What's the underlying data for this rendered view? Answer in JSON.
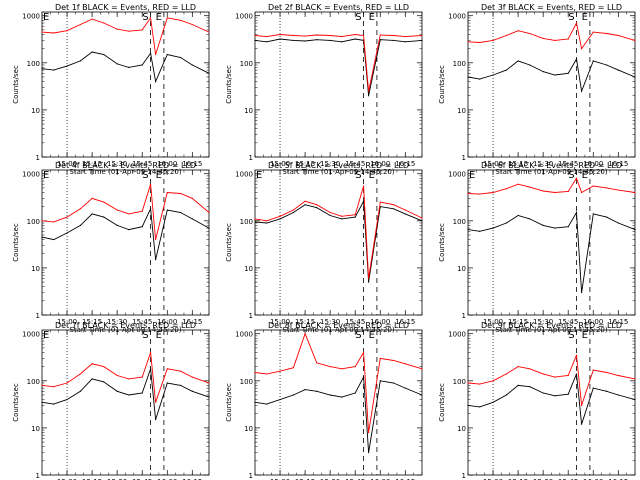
{
  "figure": {
    "background": "#ffffff",
    "axis_color": "#000000",
    "series_colors": {
      "events": "#000000",
      "lld": "#ff0000"
    },
    "x_axis_label": "Start Time (01-Apr-09 14:45:20)",
    "x_tick_labels": [
      "15:00",
      "15:15",
      "15:30",
      "15:45",
      "16:00",
      "16:15"
    ],
    "y_axis_label": "Counts/sec",
    "y_tick_labels": [
      "1",
      "10",
      "100",
      "1000"
    ],
    "marker_labels": {
      "E_left": "E",
      "S": "S",
      "E_right": "E"
    }
  },
  "chart_data": [
    {
      "type": "line",
      "title": "Det 1f BLACK = Events, RED = LLD",
      "x": [
        "14:45",
        "14:52",
        "15:00",
        "15:08",
        "15:15",
        "15:22",
        "15:30",
        "15:37",
        "15:45",
        "15:50",
        "15:53",
        "16:00",
        "16:08",
        "16:15",
        "16:25"
      ],
      "series": [
        {
          "name": "BLACK = Events",
          "values": [
            75,
            70,
            85,
            110,
            170,
            150,
            95,
            80,
            90,
            160,
            40,
            150,
            130,
            90,
            60
          ]
        },
        {
          "name": "RED = LLD",
          "values": [
            450,
            430,
            480,
            650,
            850,
            700,
            520,
            470,
            500,
            900,
            150,
            900,
            800,
            650,
            450
          ]
        }
      ],
      "xlim": [
        "14:45",
        "16:25"
      ],
      "ylim": [
        1,
        1200
      ],
      "yscale": "log",
      "markers": {
        "E_left": "14:45",
        "S": "15:50",
        "E_right": "15:58",
        "dotted": "15:00"
      }
    },
    {
      "type": "line",
      "title": "Det 2f BLACK = Events, RED = LLD",
      "x": [
        "14:45",
        "14:52",
        "15:00",
        "15:08",
        "15:15",
        "15:22",
        "15:30",
        "15:37",
        "15:45",
        "15:50",
        "15:53",
        "16:00",
        "16:08",
        "16:15",
        "16:25"
      ],
      "series": [
        {
          "name": "BLACK = Events",
          "values": [
            300,
            280,
            320,
            300,
            290,
            310,
            300,
            280,
            320,
            300,
            20,
            310,
            300,
            280,
            300
          ]
        },
        {
          "name": "RED = LLD",
          "values": [
            380,
            360,
            400,
            380,
            370,
            390,
            380,
            360,
            400,
            380,
            25,
            390,
            380,
            360,
            380
          ]
        }
      ],
      "xlim": [
        "14:45",
        "16:25"
      ],
      "ylim": [
        1,
        1200
      ],
      "yscale": "log",
      "markers": {
        "E_left": "",
        "S": "15:50",
        "E_right": "15:58",
        "dotted": "15:00"
      }
    },
    {
      "type": "line",
      "title": "Det 3f BLACK = Events, RED = LLD",
      "x": [
        "14:45",
        "14:52",
        "15:00",
        "15:08",
        "15:15",
        "15:22",
        "15:30",
        "15:37",
        "15:45",
        "15:50",
        "15:53",
        "16:00",
        "16:08",
        "16:15",
        "16:25"
      ],
      "series": [
        {
          "name": "BLACK = Events",
          "values": [
            50,
            45,
            55,
            70,
            110,
            90,
            65,
            55,
            60,
            120,
            25,
            110,
            90,
            70,
            50
          ]
        },
        {
          "name": "RED = LLD",
          "values": [
            280,
            270,
            300,
            380,
            480,
            420,
            330,
            300,
            320,
            700,
            200,
            450,
            420,
            380,
            300
          ]
        }
      ],
      "xlim": [
        "14:45",
        "16:25"
      ],
      "ylim": [
        1,
        1200
      ],
      "yscale": "log",
      "markers": {
        "E_left": "",
        "S": "15:50",
        "E_right": "15:58",
        "dotted": "15:00"
      }
    },
    {
      "type": "line",
      "title": "Det 4f BLACK = Events, RED = LLD",
      "x": [
        "14:45",
        "14:52",
        "15:00",
        "15:08",
        "15:15",
        "15:22",
        "15:30",
        "15:37",
        "15:45",
        "15:50",
        "15:53",
        "16:00",
        "16:08",
        "16:15",
        "16:25"
      ],
      "series": [
        {
          "name": "BLACK = Events",
          "values": [
            45,
            40,
            55,
            80,
            140,
            120,
            80,
            65,
            75,
            180,
            15,
            170,
            150,
            110,
            70
          ]
        },
        {
          "name": "RED = LLD",
          "values": [
            100,
            95,
            120,
            180,
            300,
            250,
            170,
            140,
            160,
            600,
            40,
            400,
            380,
            300,
            150
          ]
        }
      ],
      "xlim": [
        "14:45",
        "16:25"
      ],
      "ylim": [
        1,
        1200
      ],
      "yscale": "log",
      "markers": {
        "E_left": "14:45",
        "S": "15:50",
        "E_right": "15:58",
        "dotted": "15:00"
      }
    },
    {
      "type": "line",
      "title": "Det 5f BLACK = Events, RED = LLD",
      "x": [
        "14:45",
        "14:52",
        "15:00",
        "15:08",
        "15:15",
        "15:22",
        "15:30",
        "15:37",
        "15:45",
        "15:50",
        "15:53",
        "16:00",
        "16:08",
        "16:15",
        "16:25"
      ],
      "series": [
        {
          "name": "BLACK = Events",
          "values": [
            95,
            90,
            110,
            150,
            220,
            190,
            130,
            110,
            120,
            260,
            5,
            200,
            180,
            140,
            100
          ]
        },
        {
          "name": "RED = LLD",
          "values": [
            110,
            100,
            125,
            170,
            260,
            220,
            150,
            125,
            135,
            550,
            6,
            250,
            220,
            170,
            115
          ]
        }
      ],
      "xlim": [
        "14:45",
        "16:25"
      ],
      "ylim": [
        1,
        1200
      ],
      "yscale": "log",
      "markers": {
        "E_left": "14:45",
        "S": "15:50",
        "E_right": "15:58",
        "dotted": "15:00"
      }
    },
    {
      "type": "line",
      "title": "Det 6f BLACK = Events, RED = LLD",
      "x": [
        "14:45",
        "14:52",
        "15:00",
        "15:08",
        "15:15",
        "15:22",
        "15:30",
        "15:37",
        "15:45",
        "15:50",
        "15:53",
        "16:00",
        "16:08",
        "16:15",
        "16:25"
      ],
      "series": [
        {
          "name": "BLACK = Events",
          "values": [
            65,
            60,
            70,
            90,
            130,
            110,
            80,
            70,
            75,
            150,
            3,
            140,
            120,
            90,
            65
          ]
        },
        {
          "name": "RED = LLD",
          "values": [
            380,
            370,
            400,
            480,
            600,
            520,
            430,
            400,
            420,
            800,
            400,
            550,
            500,
            450,
            400
          ]
        }
      ],
      "xlim": [
        "14:45",
        "16:25"
      ],
      "ylim": [
        1,
        1200
      ],
      "yscale": "log",
      "markers": {
        "E_left": "14:45",
        "S": "15:50",
        "E_right": "15:58",
        "dotted": "15:00"
      }
    },
    {
      "type": "line",
      "title": "Det 7f BLACK = Events, RED = LLD",
      "x": [
        "14:45",
        "14:52",
        "15:00",
        "15:08",
        "15:15",
        "15:22",
        "15:30",
        "15:37",
        "15:45",
        "15:50",
        "15:53",
        "16:00",
        "16:08",
        "16:15",
        "16:25"
      ],
      "series": [
        {
          "name": "BLACK = Events",
          "values": [
            35,
            32,
            40,
            60,
            110,
            95,
            60,
            50,
            55,
            180,
            15,
            90,
            80,
            60,
            45
          ]
        },
        {
          "name": "RED = LLD",
          "values": [
            80,
            75,
            90,
            140,
            230,
            200,
            130,
            110,
            120,
            400,
            35,
            180,
            160,
            120,
            90
          ]
        }
      ],
      "xlim": [
        "14:45",
        "16:25"
      ],
      "ylim": [
        1,
        1200
      ],
      "yscale": "log",
      "markers": {
        "E_left": "14:45",
        "S": "15:50",
        "E_right": "15:58",
        "dotted": "15:00"
      }
    },
    {
      "type": "line",
      "title": "Det 8f BLACK = Events, RED = LLD",
      "x": [
        "14:45",
        "14:52",
        "15:00",
        "15:08",
        "15:15",
        "15:22",
        "15:30",
        "15:37",
        "15:45",
        "15:50",
        "15:53",
        "16:00",
        "16:08",
        "16:15",
        "16:25"
      ],
      "series": [
        {
          "name": "BLACK = Events",
          "values": [
            35,
            32,
            40,
            50,
            65,
            60,
            50,
            45,
            55,
            120,
            3,
            100,
            90,
            70,
            50
          ]
        },
        {
          "name": "RED = LLD",
          "values": [
            150,
            140,
            160,
            190,
            1000,
            240,
            200,
            180,
            200,
            400,
            8,
            300,
            270,
            230,
            180
          ]
        }
      ],
      "xlim": [
        "14:45",
        "16:25"
      ],
      "ylim": [
        1,
        1200
      ],
      "yscale": "log",
      "markers": {
        "E_left": "",
        "S": "15:50",
        "E_right": "15:58",
        "dotted": "15:00"
      }
    },
    {
      "type": "line",
      "title": "Det 9f BLACK = Events, RED = LLD",
      "x": [
        "14:45",
        "14:52",
        "15:00",
        "15:08",
        "15:15",
        "15:22",
        "15:30",
        "15:37",
        "15:45",
        "15:50",
        "15:53",
        "16:00",
        "16:08",
        "16:15",
        "16:25"
      ],
      "series": [
        {
          "name": "BLACK = Events",
          "values": [
            30,
            28,
            35,
            50,
            80,
            75,
            55,
            48,
            52,
            140,
            12,
            70,
            60,
            50,
            40
          ]
        },
        {
          "name": "RED = LLD",
          "values": [
            90,
            85,
            100,
            140,
            200,
            180,
            140,
            120,
            130,
            350,
            30,
            170,
            150,
            130,
            110
          ]
        }
      ],
      "xlim": [
        "14:45",
        "16:25"
      ],
      "ylim": [
        1,
        1200
      ],
      "yscale": "log",
      "markers": {
        "E_left": "",
        "S": "15:50",
        "E_right": "15:58",
        "dotted": "15:00"
      }
    }
  ]
}
